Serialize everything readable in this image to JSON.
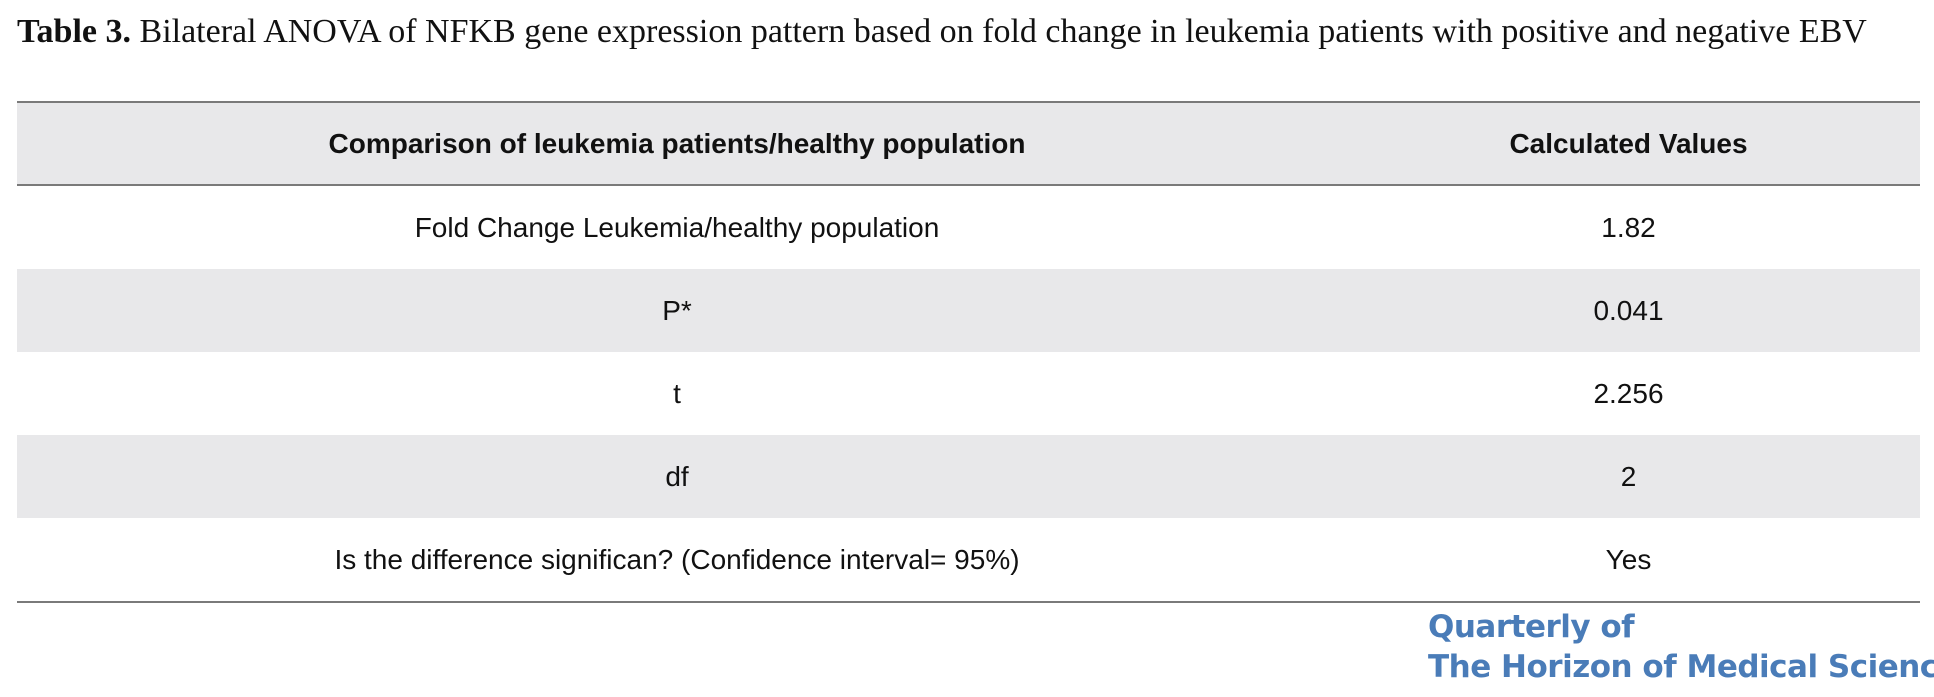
{
  "caption": {
    "label": "Table 3.",
    "text": " Bilateral ANOVA of NFKB gene expression pattern based on fold change in leukemia patients with positive and negative EBV"
  },
  "table": {
    "headers": [
      "Comparison of leukemia patients/healthy population",
      "Calculated Values"
    ],
    "rows": [
      [
        "Fold Change Leukemia/healthy population",
        "1.82"
      ],
      [
        "P*",
        "0.041"
      ],
      [
        "t",
        "2.256"
      ],
      [
        "df",
        "2"
      ],
      [
        "Is the difference significan? (Confidence interval= 95%)",
        "Yes"
      ]
    ]
  },
  "journal_logo": {
    "line1": "Quarterly of",
    "line2": "The Horizon of Medical Sciences",
    "color": "#4a7cb8"
  }
}
